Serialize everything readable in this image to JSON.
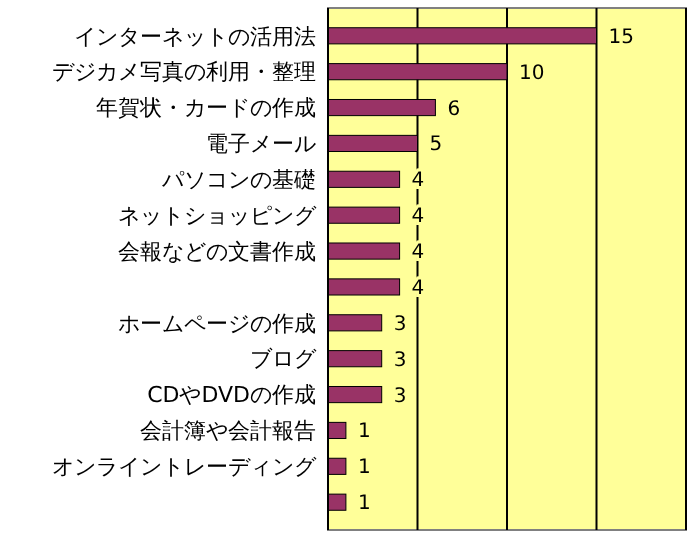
{
  "chart_data": {
    "type": "bar",
    "orientation": "horizontal",
    "categories": [
      "インターネットの活用法",
      "デジカメ写真の利用・整理",
      "年賀状・カードの作成",
      "電子メール",
      "パソコンの基礎",
      "ネットショッピング",
      "会報などの文書作成",
      null,
      "ホームページの作成",
      "ブログ",
      "CDやDVDの作成",
      "会計簿や会計報告",
      "オンライントレーディング",
      null
    ],
    "values": [
      15,
      10,
      6,
      5,
      4,
      4,
      4,
      4,
      3,
      3,
      3,
      1,
      1,
      1
    ],
    "color": "#993366",
    "xlim": [
      0,
      20
    ],
    "xticks": [
      {
        "value": 0,
        "label": null
      },
      {
        "value": 5,
        "label": null
      },
      {
        "value": 10,
        "label": null
      },
      {
        "value": 15,
        "label": null
      },
      {
        "value": 20,
        "label": null
      }
    ],
    "tick_labels": "y",
    "grid": "x",
    "data_labels": true
  }
}
